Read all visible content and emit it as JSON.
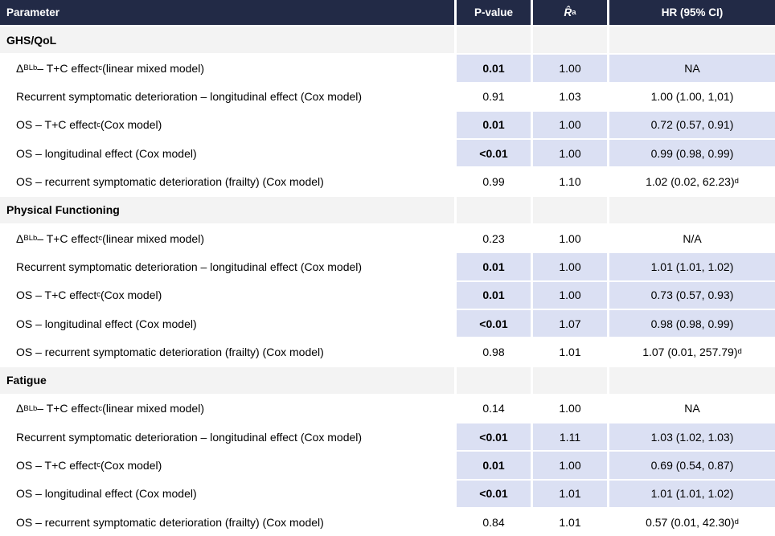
{
  "colors": {
    "header_bg": "#222A46",
    "header_text": "#FFFFFF",
    "section_bg": "#F3F3F3",
    "highlight_bg": "#DBE0F3",
    "row_bg": "#FFFFFF",
    "body_text": "#000000"
  },
  "table": {
    "columns": [
      {
        "id": "parameter",
        "segments": [
          {
            "t": "Parameter"
          }
        ]
      },
      {
        "id": "p-value",
        "segments": [
          {
            "t": "P-value"
          }
        ]
      },
      {
        "id": "r-hat",
        "segments": [
          {
            "t": "R̂",
            "st": "it"
          },
          {
            "t": "a",
            "st": "sup"
          }
        ]
      },
      {
        "id": "hr-95-ci",
        "segments": [
          {
            "t": "HR (95% CI)"
          }
        ]
      }
    ],
    "sections": [
      {
        "title": "GHS/QoL",
        "rows": [
          {
            "label": [
              {
                "t": "Δ"
              },
              {
                "t": "BL",
                "st": "sub"
              },
              {
                "t": "b",
                "st": "sup"
              },
              {
                "t": " – T+C effect"
              },
              {
                "t": "c",
                "st": "sup"
              },
              {
                "t": " (linear mixed model)"
              }
            ],
            "p": "0.01",
            "highlight": true,
            "r": "1.00",
            "hr": [
              {
                "t": "NA"
              }
            ]
          },
          {
            "label": [
              {
                "t": "Recurrent symptomatic deterioration – longitudinal effect (Cox model)"
              }
            ],
            "p": "0.91",
            "highlight": false,
            "r": "1.03",
            "hr": [
              {
                "t": "1.00 (1.00, 1,01)"
              }
            ]
          },
          {
            "label": [
              {
                "t": "OS – T+C effect"
              },
              {
                "t": "c",
                "st": "sup"
              },
              {
                "t": " (Cox model)"
              }
            ],
            "p": "0.01",
            "highlight": true,
            "r": "1.00",
            "hr": [
              {
                "t": "0.72 (0.57, 0.91)"
              }
            ]
          },
          {
            "label": [
              {
                "t": "OS – longitudinal effect (Cox model)"
              }
            ],
            "p": "<0.01",
            "highlight": true,
            "r": "1.00",
            "hr": [
              {
                "t": "0.99 (0.98, 0.99)"
              }
            ]
          },
          {
            "label": [
              {
                "t": "OS – recurrent symptomatic deterioration (frailty) (Cox model)"
              }
            ],
            "p": "0.99",
            "highlight": false,
            "r": "1.10",
            "hr": [
              {
                "t": "1.02 (0.02, 62.23)"
              },
              {
                "t": "d",
                "st": "sup"
              }
            ]
          }
        ]
      },
      {
        "title": "Physical Functioning",
        "rows": [
          {
            "label": [
              {
                "t": "Δ"
              },
              {
                "t": "BL",
                "st": "sub"
              },
              {
                "t": "b",
                "st": "sup"
              },
              {
                "t": " – T+C effect"
              },
              {
                "t": "c",
                "st": "sup"
              },
              {
                "t": " (linear mixed model)"
              }
            ],
            "p": "0.23",
            "highlight": false,
            "r": "1.00",
            "hr": [
              {
                "t": "N/A"
              }
            ]
          },
          {
            "label": [
              {
                "t": "Recurrent symptomatic deterioration – longitudinal effect (Cox model)"
              }
            ],
            "p": "0.01",
            "highlight": true,
            "r": "1.00",
            "hr": [
              {
                "t": "1.01 (1.01, 1.02)"
              }
            ]
          },
          {
            "label": [
              {
                "t": "OS – T+C effect"
              },
              {
                "t": "c",
                "st": "sup"
              },
              {
                "t": " (Cox model)"
              }
            ],
            "p": "0.01",
            "highlight": true,
            "r": "1.00",
            "hr": [
              {
                "t": "0.73 (0.57, 0.93)"
              }
            ]
          },
          {
            "label": [
              {
                "t": "OS – longitudinal effect (Cox model)"
              }
            ],
            "p": "<0.01",
            "highlight": true,
            "r": "1.07",
            "hr": [
              {
                "t": "0.98 (0.98, 0.99)"
              }
            ]
          },
          {
            "label": [
              {
                "t": "OS – recurrent symptomatic deterioration (frailty) (Cox model)"
              }
            ],
            "p": "0.98",
            "highlight": false,
            "r": "1.01",
            "hr": [
              {
                "t": "1.07 (0.01, 257.79)"
              },
              {
                "t": "d",
                "st": "sup"
              }
            ]
          }
        ]
      },
      {
        "title": "Fatigue",
        "rows": [
          {
            "label": [
              {
                "t": "Δ"
              },
              {
                "t": "BL",
                "st": "sub"
              },
              {
                "t": "b",
                "st": "sup"
              },
              {
                "t": " – T+C effect"
              },
              {
                "t": "c",
                "st": "sup"
              },
              {
                "t": " (linear mixed model)"
              }
            ],
            "p": "0.14",
            "highlight": false,
            "r": "1.00",
            "hr": [
              {
                "t": "NA"
              }
            ]
          },
          {
            "label": [
              {
                "t": "Recurrent symptomatic deterioration – longitudinal effect (Cox model)"
              }
            ],
            "p": "<0.01",
            "highlight": true,
            "r": "1.11",
            "hr": [
              {
                "t": "1.03 (1.02, 1.03)"
              }
            ]
          },
          {
            "label": [
              {
                "t": "OS – T+C effect"
              },
              {
                "t": "c",
                "st": "sup"
              },
              {
                "t": " (Cox model)"
              }
            ],
            "p": "0.01",
            "highlight": true,
            "r": "1.00",
            "hr": [
              {
                "t": "0.69 (0.54, 0.87)"
              }
            ]
          },
          {
            "label": [
              {
                "t": "OS – longitudinal effect (Cox model)"
              }
            ],
            "p": "<0.01",
            "highlight": true,
            "r": "1.01",
            "hr": [
              {
                "t": "1.01 (1.01, 1.02)"
              }
            ]
          },
          {
            "label": [
              {
                "t": "OS – recurrent symptomatic deterioration (frailty) (Cox model)"
              }
            ],
            "p": "0.84",
            "highlight": false,
            "r": "1.01",
            "hr": [
              {
                "t": "0.57 (0.01, 42.30)"
              },
              {
                "t": "d",
                "st": "sup"
              }
            ]
          }
        ]
      }
    ]
  }
}
